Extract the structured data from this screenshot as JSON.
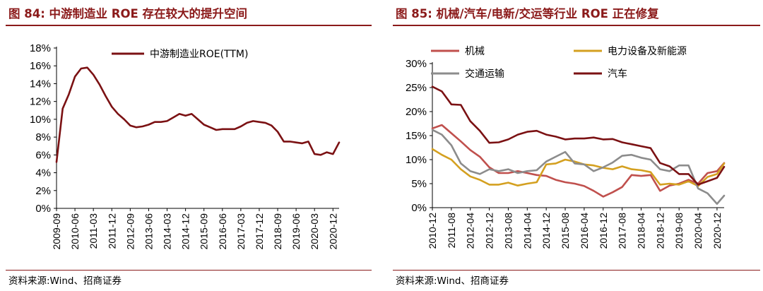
{
  "left": {
    "fig_title": "图 84:  中游制造业 ROE 存在较大的提升空间",
    "source": "资料来源:Wind、招商证券"
  },
  "right": {
    "fig_title": "图 85:  机械/汽车/电新/交运等行业  ROE 正在修复",
    "source": "资料来源:Wind、招商证券"
  },
  "colors": {
    "title": "#8b1a1a",
    "midstream": "#7b1113",
    "machinery": "#c0504d",
    "power_equipment": "#d4a020",
    "transport": "#8c8c8c",
    "auto": "#7b1113"
  },
  "chart_data": [
    {
      "type": "line",
      "title": "中游制造业 ROE 存在较大的提升空间",
      "xlabel": "",
      "ylabel": "",
      "ylim": [
        0,
        18
      ],
      "yticks": [
        0,
        2,
        4,
        6,
        8,
        10,
        12,
        14,
        16,
        18
      ],
      "ytick_labels": [
        "0%",
        "2%",
        "4%",
        "6%",
        "8%",
        "10%",
        "12%",
        "14%",
        "16%",
        "18%"
      ],
      "x_start": "2009-09",
      "x_end": "2021-03",
      "xtick_labels": [
        "2009-09",
        "2010-06",
        "2011-03",
        "2011-12",
        "2012-09",
        "2013-06",
        "2014-03",
        "2014-12",
        "2015-09",
        "2016-06",
        "2017-03",
        "2017-12",
        "2018-09",
        "2019-06",
        "2020-03",
        "2020-12"
      ],
      "legend_position": "top-center",
      "series": [
        {
          "name": "中游制造业ROE(TTM)",
          "color": "#7b1113",
          "x": [
            "2009-09",
            "2009-12",
            "2010-03",
            "2010-06",
            "2010-09",
            "2010-12",
            "2011-03",
            "2011-06",
            "2011-09",
            "2011-12",
            "2012-03",
            "2012-06",
            "2012-09",
            "2012-12",
            "2013-03",
            "2013-06",
            "2013-09",
            "2013-12",
            "2014-03",
            "2014-06",
            "2014-09",
            "2014-12",
            "2015-03",
            "2015-06",
            "2015-09",
            "2015-12",
            "2016-03",
            "2016-06",
            "2016-09",
            "2016-12",
            "2017-03",
            "2017-06",
            "2017-09",
            "2017-12",
            "2018-03",
            "2018-06",
            "2018-09",
            "2018-12",
            "2019-03",
            "2019-06",
            "2019-09",
            "2019-12",
            "2020-03",
            "2020-06",
            "2020-09",
            "2020-12",
            "2021-03"
          ],
          "values": [
            5.2,
            11.2,
            12.8,
            14.8,
            15.7,
            15.8,
            15.0,
            13.9,
            12.6,
            11.4,
            10.6,
            10.0,
            9.3,
            9.1,
            9.2,
            9.4,
            9.7,
            9.7,
            9.8,
            10.2,
            10.6,
            10.4,
            10.6,
            10.0,
            9.4,
            9.1,
            8.8,
            8.9,
            8.9,
            8.9,
            9.2,
            9.6,
            9.8,
            9.7,
            9.6,
            9.3,
            8.6,
            7.5,
            7.5,
            7.4,
            7.3,
            7.5,
            6.1,
            6.0,
            6.3,
            6.1,
            7.4
          ]
        }
      ]
    },
    {
      "type": "line",
      "title": "机械/汽车/电新/交运等行业 ROE 正在修复",
      "xlabel": "",
      "ylabel": "",
      "ylim": [
        0,
        30
      ],
      "yticks": [
        0,
        5,
        10,
        15,
        20,
        25,
        30
      ],
      "ytick_labels": [
        "0%",
        "5%",
        "10%",
        "15%",
        "20%",
        "25%",
        "30%"
      ],
      "x_start": "2010-12",
      "x_end": "2021-03",
      "xtick_labels": [
        "2010-12",
        "2011-08",
        "2012-04",
        "2012-12",
        "2013-08",
        "2014-04",
        "2014-12",
        "2015-08",
        "2016-04",
        "2016-12",
        "2017-08",
        "2018-04",
        "2018-12",
        "2019-08",
        "2020-04",
        "2020-12"
      ],
      "legend_position": "top",
      "series": [
        {
          "name": "机械",
          "color": "#c0504d",
          "x": [
            "2010-12",
            "2011-04",
            "2011-08",
            "2011-12",
            "2012-04",
            "2012-08",
            "2012-12",
            "2013-04",
            "2013-08",
            "2013-12",
            "2014-04",
            "2014-08",
            "2014-12",
            "2015-04",
            "2015-08",
            "2015-12",
            "2016-04",
            "2016-08",
            "2016-12",
            "2017-04",
            "2017-08",
            "2017-12",
            "2018-04",
            "2018-08",
            "2018-12",
            "2019-04",
            "2019-08",
            "2019-12",
            "2020-04",
            "2020-08",
            "2020-12",
            "2021-03"
          ],
          "values": [
            16.5,
            17.2,
            15.5,
            13.8,
            12.0,
            10.6,
            8.4,
            7.2,
            7.2,
            7.6,
            7.2,
            6.8,
            6.6,
            5.8,
            5.3,
            5.0,
            4.5,
            3.5,
            2.3,
            3.2,
            4.3,
            6.8,
            6.6,
            6.8,
            3.5,
            4.6,
            5.0,
            5.8,
            5.0,
            7.2,
            7.6,
            9.3
          ]
        },
        {
          "name": "电力设备及新能源",
          "color": "#d4a020",
          "x": [
            "2010-12",
            "2011-04",
            "2011-08",
            "2011-12",
            "2012-04",
            "2012-08",
            "2012-12",
            "2013-04",
            "2013-08",
            "2013-12",
            "2014-04",
            "2014-08",
            "2014-12",
            "2015-04",
            "2015-08",
            "2015-12",
            "2016-04",
            "2016-08",
            "2016-12",
            "2017-04",
            "2017-08",
            "2017-12",
            "2018-04",
            "2018-08",
            "2018-12",
            "2019-04",
            "2019-08",
            "2019-12",
            "2020-04",
            "2020-08",
            "2020-12",
            "2021-03"
          ],
          "values": [
            12.2,
            11.0,
            10.0,
            8.0,
            6.5,
            5.8,
            4.8,
            4.8,
            5.2,
            4.6,
            5.0,
            5.3,
            9.0,
            9.2,
            10.0,
            9.6,
            9.0,
            8.8,
            8.3,
            8.0,
            8.6,
            8.0,
            7.8,
            7.4,
            4.8,
            5.0,
            4.8,
            5.5,
            4.5,
            6.4,
            7.0,
            9.2
          ]
        },
        {
          "name": "交通运输",
          "color": "#8c8c8c",
          "x": [
            "2010-12",
            "2011-04",
            "2011-08",
            "2011-12",
            "2012-04",
            "2012-08",
            "2012-12",
            "2013-04",
            "2013-08",
            "2013-12",
            "2014-04",
            "2014-08",
            "2014-12",
            "2015-04",
            "2015-08",
            "2015-12",
            "2016-04",
            "2016-08",
            "2016-12",
            "2017-04",
            "2017-08",
            "2017-12",
            "2018-04",
            "2018-08",
            "2018-12",
            "2019-04",
            "2019-08",
            "2019-12",
            "2020-04",
            "2020-08",
            "2020-12",
            "2021-03"
          ],
          "values": [
            16.2,
            15.2,
            13.0,
            9.2,
            7.6,
            7.0,
            8.0,
            7.6,
            8.0,
            7.2,
            7.6,
            7.8,
            9.6,
            10.6,
            11.6,
            9.2,
            9.0,
            7.6,
            8.4,
            9.4,
            10.8,
            11.0,
            10.4,
            10.0,
            8.0,
            7.6,
            8.8,
            8.8,
            4.0,
            3.0,
            0.8,
            2.5
          ]
        },
        {
          "name": "汽车",
          "color": "#7b1113",
          "x": [
            "2010-12",
            "2011-04",
            "2011-08",
            "2011-12",
            "2012-04",
            "2012-08",
            "2012-12",
            "2013-04",
            "2013-08",
            "2013-12",
            "2014-04",
            "2014-08",
            "2014-12",
            "2015-04",
            "2015-08",
            "2015-12",
            "2016-04",
            "2016-08",
            "2016-12",
            "2017-04",
            "2017-08",
            "2017-12",
            "2018-04",
            "2018-08",
            "2018-12",
            "2019-04",
            "2019-08",
            "2019-12",
            "2020-04",
            "2020-08",
            "2020-12",
            "2021-03"
          ],
          "values": [
            25.2,
            24.2,
            21.5,
            21.4,
            18.0,
            16.0,
            13.5,
            13.6,
            14.2,
            15.2,
            15.8,
            16.0,
            15.2,
            14.8,
            14.2,
            14.4,
            14.4,
            14.6,
            14.2,
            14.3,
            13.6,
            13.2,
            12.8,
            12.4,
            9.3,
            8.6,
            7.0,
            7.0,
            4.8,
            5.5,
            6.2,
            8.5
          ]
        }
      ]
    }
  ]
}
